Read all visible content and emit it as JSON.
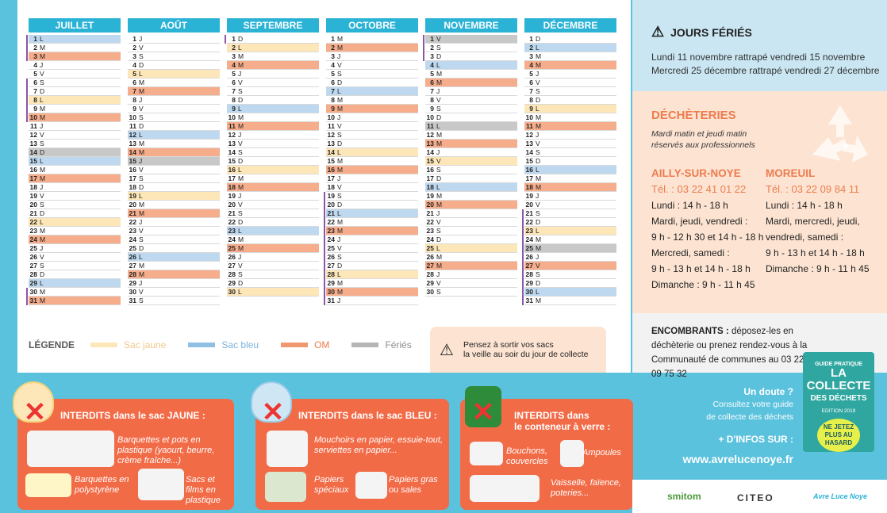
{
  "months": [
    {
      "name": "JUILLET",
      "days": [
        [
          "1",
          "L",
          "b",
          1
        ],
        [
          "2",
          "M",
          "",
          1
        ],
        [
          "3",
          "M",
          "o",
          1
        ],
        [
          "4",
          "J",
          "",
          0
        ],
        [
          "5",
          "V",
          "",
          0
        ],
        [
          "6",
          "S",
          "",
          1
        ],
        [
          "7",
          "D",
          "",
          1
        ],
        [
          "8",
          "L",
          "j",
          1
        ],
        [
          "9",
          "M",
          "",
          1
        ],
        [
          "10",
          "M",
          "o",
          1
        ],
        [
          "11",
          "J",
          "",
          0
        ],
        [
          "12",
          "V",
          "",
          0
        ],
        [
          "13",
          "S",
          "",
          0
        ],
        [
          "14",
          "D",
          "f",
          0
        ],
        [
          "15",
          "L",
          "b",
          0
        ],
        [
          "16",
          "M",
          "",
          0
        ],
        [
          "17",
          "M",
          "o",
          0
        ],
        [
          "18",
          "J",
          "",
          0
        ],
        [
          "19",
          "V",
          "",
          0
        ],
        [
          "20",
          "S",
          "",
          0
        ],
        [
          "21",
          "D",
          "",
          0
        ],
        [
          "22",
          "L",
          "j",
          0
        ],
        [
          "23",
          "M",
          "",
          0
        ],
        [
          "24",
          "M",
          "o",
          0
        ],
        [
          "25",
          "J",
          "",
          0
        ],
        [
          "26",
          "V",
          "",
          0
        ],
        [
          "27",
          "S",
          "",
          0
        ],
        [
          "28",
          "D",
          "",
          0
        ],
        [
          "29",
          "L",
          "b",
          0
        ],
        [
          "30",
          "M",
          "",
          1
        ],
        [
          "31",
          "M",
          "o",
          1
        ]
      ]
    },
    {
      "name": "AOÛT",
      "days": [
        [
          "1",
          "J",
          "",
          0
        ],
        [
          "2",
          "V",
          "",
          0
        ],
        [
          "3",
          "S",
          "",
          0
        ],
        [
          "4",
          "D",
          "",
          0
        ],
        [
          "5",
          "L",
          "j",
          0
        ],
        [
          "6",
          "M",
          "",
          0
        ],
        [
          "7",
          "M",
          "o",
          0
        ],
        [
          "8",
          "J",
          "",
          0
        ],
        [
          "9",
          "V",
          "",
          0
        ],
        [
          "10",
          "S",
          "",
          0
        ],
        [
          "11",
          "D",
          "",
          0
        ],
        [
          "12",
          "L",
          "b",
          0
        ],
        [
          "13",
          "M",
          "",
          0
        ],
        [
          "14",
          "M",
          "o",
          0
        ],
        [
          "15",
          "J",
          "f",
          0
        ],
        [
          "16",
          "V",
          "",
          0
        ],
        [
          "17",
          "S",
          "",
          0
        ],
        [
          "18",
          "D",
          "",
          0
        ],
        [
          "19",
          "L",
          "j",
          0
        ],
        [
          "20",
          "M",
          "",
          0
        ],
        [
          "21",
          "M",
          "o",
          0
        ],
        [
          "22",
          "J",
          "",
          0
        ],
        [
          "23",
          "V",
          "",
          0
        ],
        [
          "24",
          "S",
          "",
          0
        ],
        [
          "25",
          "D",
          "",
          0
        ],
        [
          "26",
          "L",
          "b",
          0
        ],
        [
          "27",
          "M",
          "",
          0
        ],
        [
          "28",
          "M",
          "o",
          0
        ],
        [
          "29",
          "J",
          "",
          0
        ],
        [
          "30",
          "V",
          "",
          0
        ],
        [
          "31",
          "S",
          "",
          0
        ]
      ]
    },
    {
      "name": "SEPTEMBRE",
      "days": [
        [
          "1",
          "D",
          "",
          1
        ],
        [
          "2",
          "L",
          "j",
          0
        ],
        [
          "3",
          "M",
          "",
          0
        ],
        [
          "4",
          "M",
          "o",
          0
        ],
        [
          "5",
          "J",
          "",
          0
        ],
        [
          "6",
          "V",
          "",
          0
        ],
        [
          "7",
          "S",
          "",
          0
        ],
        [
          "8",
          "D",
          "",
          0
        ],
        [
          "9",
          "L",
          "b",
          0
        ],
        [
          "10",
          "M",
          "",
          0
        ],
        [
          "11",
          "M",
          "o",
          0
        ],
        [
          "12",
          "J",
          "",
          0
        ],
        [
          "13",
          "V",
          "",
          0
        ],
        [
          "14",
          "S",
          "",
          0
        ],
        [
          "15",
          "D",
          "",
          0
        ],
        [
          "16",
          "L",
          "j",
          0
        ],
        [
          "17",
          "M",
          "",
          0
        ],
        [
          "18",
          "M",
          "o",
          0
        ],
        [
          "19",
          "J",
          "",
          0
        ],
        [
          "20",
          "V",
          "",
          0
        ],
        [
          "21",
          "S",
          "",
          0
        ],
        [
          "22",
          "D",
          "",
          0
        ],
        [
          "23",
          "L",
          "b",
          0
        ],
        [
          "24",
          "M",
          "",
          0
        ],
        [
          "25",
          "M",
          "o",
          0
        ],
        [
          "26",
          "J",
          "",
          0
        ],
        [
          "27",
          "V",
          "",
          0
        ],
        [
          "28",
          "S",
          "",
          0
        ],
        [
          "29",
          "D",
          "",
          0
        ],
        [
          "30",
          "L",
          "j",
          0
        ]
      ]
    },
    {
      "name": "OCTOBRE",
      "days": [
        [
          "1",
          "M",
          "",
          0
        ],
        [
          "2",
          "M",
          "o",
          0
        ],
        [
          "3",
          "J",
          "",
          0
        ],
        [
          "4",
          "V",
          "",
          0
        ],
        [
          "5",
          "S",
          "",
          0
        ],
        [
          "6",
          "D",
          "",
          0
        ],
        [
          "7",
          "L",
          "b",
          0
        ],
        [
          "8",
          "M",
          "",
          0
        ],
        [
          "9",
          "M",
          "o",
          0
        ],
        [
          "10",
          "J",
          "",
          0
        ],
        [
          "11",
          "V",
          "",
          0
        ],
        [
          "12",
          "S",
          "",
          0
        ],
        [
          "13",
          "D",
          "",
          0
        ],
        [
          "14",
          "L",
          "j",
          0
        ],
        [
          "15",
          "M",
          "",
          0
        ],
        [
          "16",
          "M",
          "o",
          0
        ],
        [
          "17",
          "J",
          "",
          0
        ],
        [
          "18",
          "V",
          "",
          0
        ],
        [
          "19",
          "S",
          "",
          1
        ],
        [
          "20",
          "D",
          "",
          1
        ],
        [
          "21",
          "L",
          "b",
          1
        ],
        [
          "22",
          "M",
          "",
          1
        ],
        [
          "23",
          "M",
          "o",
          1
        ],
        [
          "24",
          "J",
          "",
          1
        ],
        [
          "25",
          "V",
          "",
          1
        ],
        [
          "26",
          "S",
          "",
          1
        ],
        [
          "27",
          "D",
          "",
          1
        ],
        [
          "28",
          "L",
          "j",
          1
        ],
        [
          "29",
          "M",
          "",
          1
        ],
        [
          "30",
          "M",
          "o",
          1
        ],
        [
          "31",
          "J",
          "",
          1
        ]
      ]
    },
    {
      "name": "NOVEMBRE",
      "days": [
        [
          "1",
          "V",
          "f",
          1
        ],
        [
          "2",
          "S",
          "",
          1
        ],
        [
          "3",
          "D",
          "",
          1
        ],
        [
          "4",
          "L",
          "b",
          0
        ],
        [
          "5",
          "M",
          "",
          0
        ],
        [
          "6",
          "M",
          "o",
          0
        ],
        [
          "7",
          "J",
          "",
          0
        ],
        [
          "8",
          "V",
          "",
          0
        ],
        [
          "9",
          "S",
          "",
          0
        ],
        [
          "10",
          "D",
          "",
          0
        ],
        [
          "11",
          "L",
          "f",
          0
        ],
        [
          "12",
          "M",
          "",
          0
        ],
        [
          "13",
          "M",
          "o",
          0
        ],
        [
          "14",
          "J",
          "",
          0
        ],
        [
          "15",
          "V",
          "j",
          0
        ],
        [
          "16",
          "S",
          "",
          0
        ],
        [
          "17",
          "D",
          "",
          0
        ],
        [
          "18",
          "L",
          "b",
          0
        ],
        [
          "19",
          "M",
          "",
          0
        ],
        [
          "20",
          "M",
          "o",
          0
        ],
        [
          "21",
          "J",
          "",
          0
        ],
        [
          "22",
          "V",
          "",
          0
        ],
        [
          "23",
          "S",
          "",
          0
        ],
        [
          "24",
          "D",
          "",
          0
        ],
        [
          "25",
          "L",
          "j",
          0
        ],
        [
          "26",
          "M",
          "",
          0
        ],
        [
          "27",
          "M",
          "o",
          0
        ],
        [
          "28",
          "J",
          "",
          0
        ],
        [
          "29",
          "V",
          "",
          0
        ],
        [
          "30",
          "S",
          "",
          0
        ]
      ]
    },
    {
      "name": "DÉCEMBRE",
      "days": [
        [
          "1",
          "D",
          "",
          0
        ],
        [
          "2",
          "L",
          "b",
          0
        ],
        [
          "3",
          "M",
          "",
          0
        ],
        [
          "4",
          "M",
          "o",
          0
        ],
        [
          "5",
          "J",
          "",
          0
        ],
        [
          "6",
          "V",
          "",
          0
        ],
        [
          "7",
          "S",
          "",
          0
        ],
        [
          "8",
          "D",
          "",
          0
        ],
        [
          "9",
          "L",
          "j",
          0
        ],
        [
          "10",
          "M",
          "",
          0
        ],
        [
          "11",
          "M",
          "o",
          0
        ],
        [
          "12",
          "J",
          "",
          0
        ],
        [
          "13",
          "V",
          "",
          0
        ],
        [
          "14",
          "S",
          "",
          0
        ],
        [
          "15",
          "D",
          "",
          0
        ],
        [
          "16",
          "L",
          "b",
          0
        ],
        [
          "17",
          "M",
          "",
          0
        ],
        [
          "18",
          "M",
          "o",
          0
        ],
        [
          "19",
          "J",
          "",
          0
        ],
        [
          "20",
          "V",
          "",
          0
        ],
        [
          "21",
          "S",
          "",
          1
        ],
        [
          "22",
          "D",
          "",
          1
        ],
        [
          "23",
          "L",
          "j",
          1
        ],
        [
          "24",
          "M",
          "",
          1
        ],
        [
          "25",
          "M",
          "f",
          1
        ],
        [
          "26",
          "J",
          "",
          1
        ],
        [
          "27",
          "V",
          "o",
          1
        ],
        [
          "28",
          "S",
          "",
          1
        ],
        [
          "29",
          "D",
          "",
          1
        ],
        [
          "30",
          "L",
          "b",
          1
        ],
        [
          "31",
          "M",
          "",
          1
        ]
      ]
    }
  ],
  "legend": {
    "title": "LÉGENDE",
    "items": [
      {
        "label": "Sac jaune",
        "color": "#fde7b8",
        "text_color": "#f0c98a"
      },
      {
        "label": "Sac bleu",
        "color": "#8fbfe2",
        "text_color": "#7bb3df"
      },
      {
        "label": "OM",
        "color": "#f29871",
        "text_color": "#ec7c4e"
      },
      {
        "label": "Fériés",
        "color": "#b5b5b5",
        "text_color": "#8c8c8c"
      }
    ]
  },
  "notice": {
    "line1": "Pensez à sortir vos sacs",
    "line2": "la veille au soir du jour de collecte"
  },
  "holidays": {
    "title": "JOURS FÉRIÉS",
    "line1": "Lundi 11 novembre rattrapé vendredi 15 novembre",
    "line2": "Mercredi 25 décembre rattrapé vendredi 27 décembre"
  },
  "dechetteries": {
    "title": "DÉCHÈTERIES",
    "note1": "Mardi matin et jeudi matin",
    "note2": "réservés aux professionnels",
    "sites": [
      {
        "name": "AILLY-SUR-NOYE",
        "tel": "Tél. : 03 22 41 01 22",
        "hours": [
          "Lundi : 14 h - 18 h",
          "Mardi, jeudi, vendredi :",
          "9 h - 12 h 30 et 14 h - 18 h",
          "Mercredi, samedi :",
          "9 h - 13 h et 14 h - 18 h",
          "Dimanche : 9 h - 11 h 45"
        ]
      },
      {
        "name": "MOREUIL",
        "tel": "Tél. : 03 22 09 84 11",
        "hours": [
          "Lundi : 14 h - 18 h",
          "Mardi, mercredi, jeudi,",
          "vendredi, samedi :",
          "9 h - 13 h et 14 h - 18 h",
          "Dimanche : 9 h - 11 h 45"
        ]
      }
    ]
  },
  "encombrants": {
    "bold": "ENCOMBRANTS :",
    "text": " déposez-les en déchèterie ou prenez rendez-vous à la Communauté de communes au 03 22 09 75 32"
  },
  "cards": [
    {
      "title": "INTERDITS dans le sac JAUNE :",
      "items": [
        "Barquettes et pots en plastique (yaourt, beurre, crème fraîche...)",
        "Barquettes en polystyrène",
        "Sacs et films en plastique"
      ]
    },
    {
      "title": "INTERDITS dans le sac BLEU :",
      "items": [
        "Mouchoirs en papier, essuie-tout, serviettes en papier...",
        "Papiers spéciaux",
        "Papiers gras ou sales"
      ]
    },
    {
      "title1": "INTERDITS dans",
      "title2": "le conteneur à verre :",
      "items": [
        "Bouchons, couvercles",
        "Ampoules",
        "Vaisselle, faïence, poteries..."
      ]
    }
  ],
  "help": {
    "question": "Un doute ?",
    "l1": "Consultez votre guide",
    "l2": "de collecte des déchets",
    "info": "+ D'INFOS SUR :",
    "url": "www.avrelucenoye.fr"
  },
  "guide": {
    "g1": "GUIDE PRATIQUE",
    "g2a": "LA",
    "g2b": "COLLECTE",
    "g2c": "DES DÉCHETS",
    "g3": "EDITION 2019",
    "g4": "NE JETEZ PLUS AU HASARD"
  },
  "logos": {
    "smitom": "smitom",
    "citeo": "CITEO",
    "cc": "Avre Luce Noye"
  }
}
